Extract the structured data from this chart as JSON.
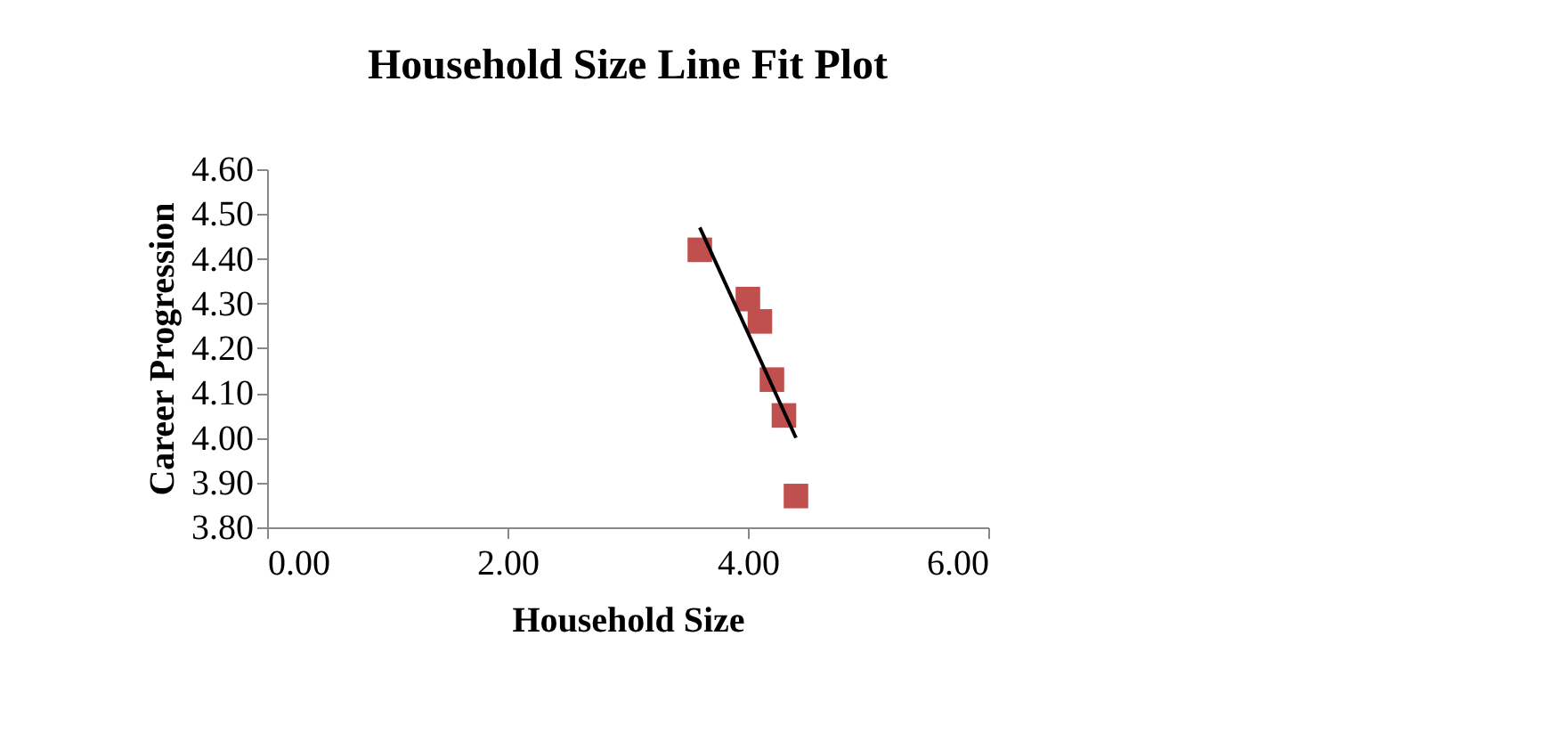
{
  "chart_data": {
    "type": "scatter",
    "title": "Household Size Line Fit Plot",
    "xlabel": "Household Size",
    "ylabel": "Career Progression",
    "marker": "square",
    "grid": false,
    "x": [
      3.6,
      4.0,
      4.1,
      4.2,
      4.3,
      4.4
    ],
    "series": [
      {
        "color": "#c0504d",
        "values": [
          4.42,
          4.31,
          4.26,
          4.13,
          4.05,
          3.87
        ]
      },
      {
        "type": "line",
        "marker": "none",
        "color": "#000000",
        "x": [
          3.6,
          4.4
        ],
        "values": [
          4.47,
          4.0
        ]
      }
    ],
    "xlim": [
      0,
      6
    ],
    "xticks": [
      {
        "value": 0,
        "label": "0.00"
      },
      {
        "value": 2,
        "label": "2.00"
      },
      {
        "value": 4,
        "label": "4.00"
      },
      {
        "value": 6,
        "label": "6.00"
      }
    ],
    "ylim": [
      3.8,
      4.6
    ],
    "yticks": [
      {
        "value": 3.8,
        "label": "3.80"
      },
      {
        "value": 3.9,
        "label": "3.90"
      },
      {
        "value": 4.0,
        "label": "4.00"
      },
      {
        "value": 4.1,
        "label": "4.10"
      },
      {
        "value": 4.2,
        "label": "4.20"
      },
      {
        "value": 4.3,
        "label": "4.30"
      },
      {
        "value": 4.4,
        "label": "4.40"
      },
      {
        "value": 4.5,
        "label": "4.50"
      },
      {
        "value": 4.6,
        "label": "4.60"
      }
    ]
  }
}
